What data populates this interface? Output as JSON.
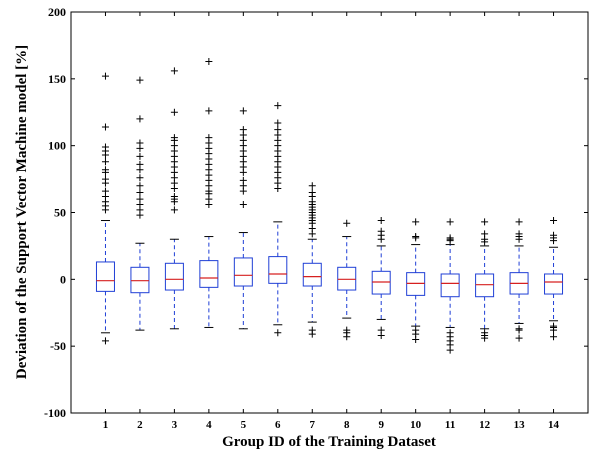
{
  "chart_data": {
    "type": "box",
    "title": "",
    "xlabel": "Group ID of the Training Dataset",
    "ylabel": "Deviation of the Support Vector Machine model [%]",
    "ylim": [
      -100,
      200
    ],
    "yticks": [
      -100,
      -50,
      0,
      50,
      100,
      150,
      200
    ],
    "grid": false,
    "legend": "none",
    "colors": {
      "box": "#1f3fd6",
      "median": "#d62020",
      "whisker": "#1f3fd6",
      "cap": "#000000",
      "flier": "#000000"
    },
    "categories": [
      "1",
      "2",
      "3",
      "4",
      "5",
      "6",
      "7",
      "8",
      "9",
      "10",
      "11",
      "12",
      "13",
      "14"
    ],
    "boxes": [
      {
        "label": "1",
        "whislo": -40,
        "q1": -9,
        "median": -1,
        "q3": 13,
        "whishi": 44,
        "fliers": [
          -46,
          52,
          55,
          58,
          62,
          66,
          72,
          75,
          80,
          82,
          88,
          93,
          96,
          99,
          114,
          152
        ]
      },
      {
        "label": "2",
        "whislo": -38,
        "q1": -10,
        "median": -1,
        "q3": 9,
        "whishi": 27,
        "fliers": [
          48,
          52,
          56,
          60,
          65,
          70,
          76,
          82,
          86,
          92,
          98,
          102,
          120,
          149
        ]
      },
      {
        "label": "3",
        "whislo": -37,
        "q1": -8,
        "median": 0,
        "q3": 12,
        "whishi": 30,
        "fliers": [
          52,
          58,
          60,
          62,
          68,
          72,
          76,
          80,
          84,
          88,
          92,
          96,
          100,
          104,
          106,
          125,
          156
        ]
      },
      {
        "label": "4",
        "whislo": -36,
        "q1": -6,
        "median": 1,
        "q3": 14,
        "whishi": 32,
        "fliers": [
          56,
          60,
          64,
          66,
          70,
          74,
          78,
          82,
          86,
          90,
          94,
          98,
          102,
          106,
          126,
          163
        ]
      },
      {
        "label": "5",
        "whislo": -37,
        "q1": -5,
        "median": 3,
        "q3": 16,
        "whishi": 35,
        "fliers": [
          56,
          66,
          70,
          74,
          80,
          84,
          88,
          92,
          96,
          100,
          104,
          108,
          112,
          126
        ]
      },
      {
        "label": "6",
        "whislo": -34,
        "q1": -3,
        "median": 4,
        "q3": 17,
        "whishi": 43,
        "fliers": [
          -40,
          68,
          72,
          76,
          80,
          84,
          88,
          92,
          96,
          100,
          104,
          108,
          112,
          117,
          130
        ]
      },
      {
        "label": "7",
        "whislo": -32,
        "q1": -5,
        "median": 2,
        "q3": 12,
        "whishi": 30,
        "fliers": [
          -38,
          -41,
          34,
          38,
          42,
          44,
          46,
          48,
          50,
          52,
          54,
          56,
          58,
          62,
          65,
          70
        ]
      },
      {
        "label": "8",
        "whislo": -29,
        "q1": -8,
        "median": 0,
        "q3": 9,
        "whishi": 32,
        "fliers": [
          -38,
          -40,
          -43,
          42
        ]
      },
      {
        "label": "9",
        "whislo": -30,
        "q1": -11,
        "median": -2,
        "q3": 6,
        "whishi": 25,
        "fliers": [
          -38,
          -42,
          30,
          33,
          36,
          44
        ]
      },
      {
        "label": "10",
        "whislo": -35,
        "q1": -12,
        "median": -3,
        "q3": 5,
        "whishi": 26,
        "fliers": [
          -38,
          -41,
          -45,
          31,
          32,
          43
        ]
      },
      {
        "label": "11",
        "whislo": -36,
        "q1": -13,
        "median": -3,
        "q3": 4,
        "whishi": 26,
        "fliers": [
          -40,
          -43,
          -46,
          -49,
          -53,
          29,
          30,
          31,
          43
        ]
      },
      {
        "label": "12",
        "whislo": -37,
        "q1": -13,
        "median": -4,
        "q3": 4,
        "whishi": 25,
        "fliers": [
          -40,
          -42,
          -44,
          28,
          30,
          34,
          43
        ]
      },
      {
        "label": "13",
        "whislo": -33,
        "q1": -11,
        "median": -3,
        "q3": 5,
        "whishi": 25,
        "fliers": [
          -37,
          -38,
          -44,
          30,
          32,
          34,
          43
        ]
      },
      {
        "label": "14",
        "whislo": -31,
        "q1": -11,
        "median": -2,
        "q3": 4,
        "whishi": 24,
        "fliers": [
          -35,
          -36,
          -38,
          -43,
          29,
          31,
          33,
          44
        ]
      }
    ]
  }
}
